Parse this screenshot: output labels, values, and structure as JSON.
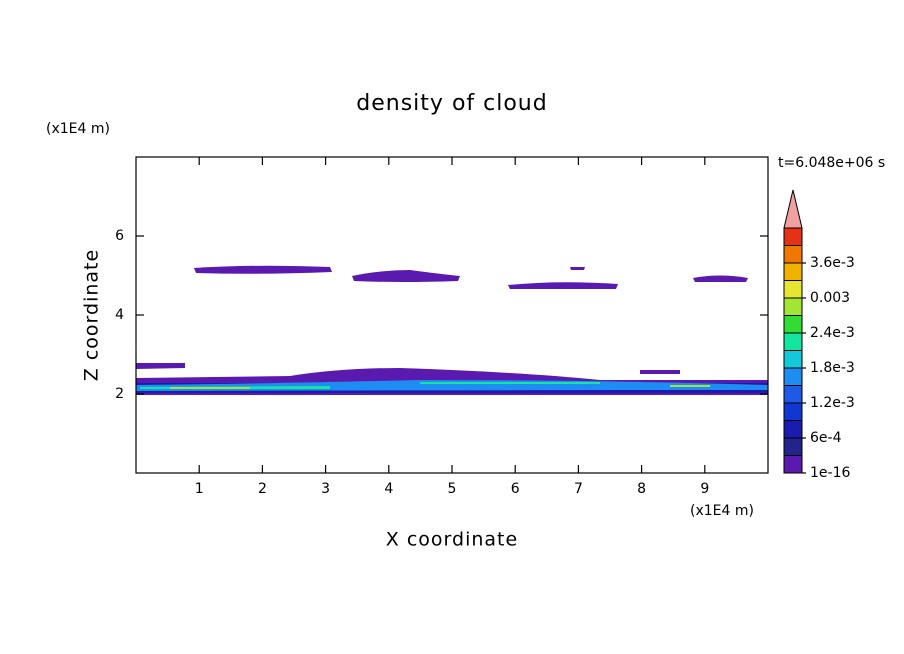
{
  "chart_data": {
    "type": "contour",
    "title": "density of cloud",
    "x_label": "X coordinate",
    "y_label": "Z coordinate",
    "x_unit": "(x1E4 m)",
    "y_unit": "(x1E4 m)",
    "time_label": "t=6.048e+06 s",
    "xlim": [
      0,
      10
    ],
    "xticks": [
      1,
      2,
      3,
      4,
      5,
      6,
      7,
      8,
      9
    ],
    "ylim": [
      0,
      8
    ],
    "yticks": [
      2,
      4,
      6
    ],
    "colorbar_ticks": [
      1e-16,
      {
        "value": 0.0006,
        "label": "6e-4"
      },
      {
        "value": 0.0012,
        "label": "1.2e-3"
      },
      {
        "value": 0.0018,
        "label": "1.8e-3"
      },
      {
        "value": 0.0024,
        "label": "2.4e-3"
      },
      0.003,
      {
        "value": 0.0036,
        "label": "3.6e-3"
      }
    ],
    "colorbar_colors": [
      "#5a1ab0",
      "#23238c",
      "#1b1bb0",
      "#0f37d2",
      "#1e5ae6",
      "#1e8cf0",
      "#14c8dc",
      "#14e6a0",
      "#32dc32",
      "#a0e632",
      "#e6e632",
      "#f0b400",
      "#f07800",
      "#e63214",
      "#f0a0a0"
    ]
  }
}
